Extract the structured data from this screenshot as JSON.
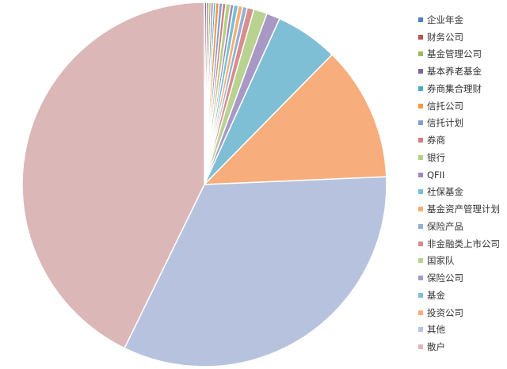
{
  "chart_data": {
    "type": "pie",
    "start_angle": "top",
    "direction": "clockwise",
    "legend_position": "right",
    "slices": [
      {
        "label": "企业年金",
        "value": 0.2,
        "color": "#4f81bd"
      },
      {
        "label": "财务公司",
        "value": 0.2,
        "color": "#c0504d"
      },
      {
        "label": "基金管理公司",
        "value": 0.2,
        "color": "#9bbb59"
      },
      {
        "label": "基本养老基金",
        "value": 0.2,
        "color": "#8064a2"
      },
      {
        "label": "券商集合理财",
        "value": 0.2,
        "color": "#4bacc6"
      },
      {
        "label": "信托公司",
        "value": 0.3,
        "color": "#f79646"
      },
      {
        "label": "信托计划",
        "value": 0.3,
        "color": "#7f9fd0"
      },
      {
        "label": "券商",
        "value": 0.3,
        "color": "#d07f7d"
      },
      {
        "label": "银行",
        "value": 0.4,
        "color": "#b3cf83"
      },
      {
        "label": "QFII",
        "value": 0.3,
        "color": "#9d88bd"
      },
      {
        "label": "社保基金",
        "value": 0.4,
        "color": "#72c0d6"
      },
      {
        "label": "基金资产管理计划",
        "value": 0.4,
        "color": "#f9ae6d"
      },
      {
        "label": "保险产品",
        "value": 0.4,
        "color": "#95add7"
      },
      {
        "label": "非金融类上市公司",
        "value": 0.6,
        "color": "#d78e8c"
      },
      {
        "label": "国家队",
        "value": 1.2,
        "color": "#b9d291"
      },
      {
        "label": "保险公司",
        "value": 1.2,
        "color": "#a898c6"
      },
      {
        "label": "基金",
        "value": 5.6,
        "color": "#7fbfd5"
      },
      {
        "label": "投资公司",
        "value": 12.0,
        "color": "#f7ad7c"
      },
      {
        "label": "其他",
        "value": 33.0,
        "color": "#b7c3de"
      },
      {
        "label": "散户",
        "value": 42.9,
        "color": "#dcb7b7"
      }
    ]
  }
}
